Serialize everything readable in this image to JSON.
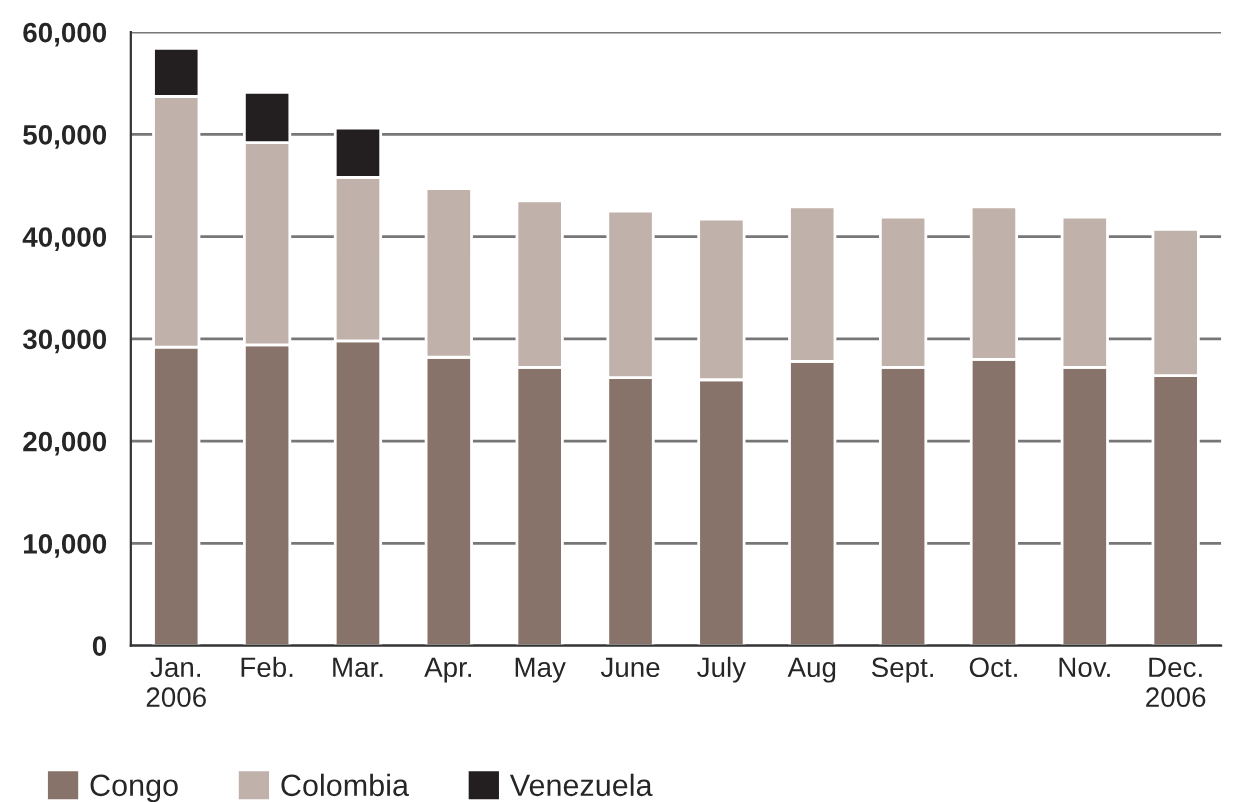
{
  "chart_data": {
    "type": "bar",
    "stacked": true,
    "categories": [
      "Jan.\n2006",
      "Feb.",
      "Mar.",
      "Apr.",
      "May",
      "June",
      "July",
      "Aug",
      "Sept.",
      "Oct.",
      "Nov.",
      "Dec.\n2006"
    ],
    "series": [
      {
        "name": "Congo",
        "color": "#877369",
        "values": [
          29200,
          29400,
          29800,
          28200,
          27200,
          26200,
          26000,
          27800,
          27200,
          28000,
          27200,
          26400
        ]
      },
      {
        "name": "Colombia",
        "color": "#c0b1aa",
        "values": [
          24500,
          19800,
          16000,
          16500,
          16300,
          16300,
          15700,
          15100,
          14700,
          14900,
          14700,
          14300
        ]
      },
      {
        "name": "Venezuela",
        "color": "#231f20",
        "values": [
          4700,
          4900,
          4800,
          null,
          null,
          null,
          null,
          null,
          null,
          null,
          null,
          null
        ]
      }
    ],
    "ylim": [
      0,
      60000
    ],
    "yticks": [
      {
        "value": 0,
        "label": "0"
      },
      {
        "value": 10000,
        "label": "10,000"
      },
      {
        "value": 20000,
        "label": "20,000"
      },
      {
        "value": 30000,
        "label": "30,000"
      },
      {
        "value": 40000,
        "label": "40,000"
      },
      {
        "value": 50000,
        "label": "50,000"
      },
      {
        "value": 60000,
        "label": "60,000"
      }
    ],
    "grid": "y",
    "legend": "bottom left"
  }
}
